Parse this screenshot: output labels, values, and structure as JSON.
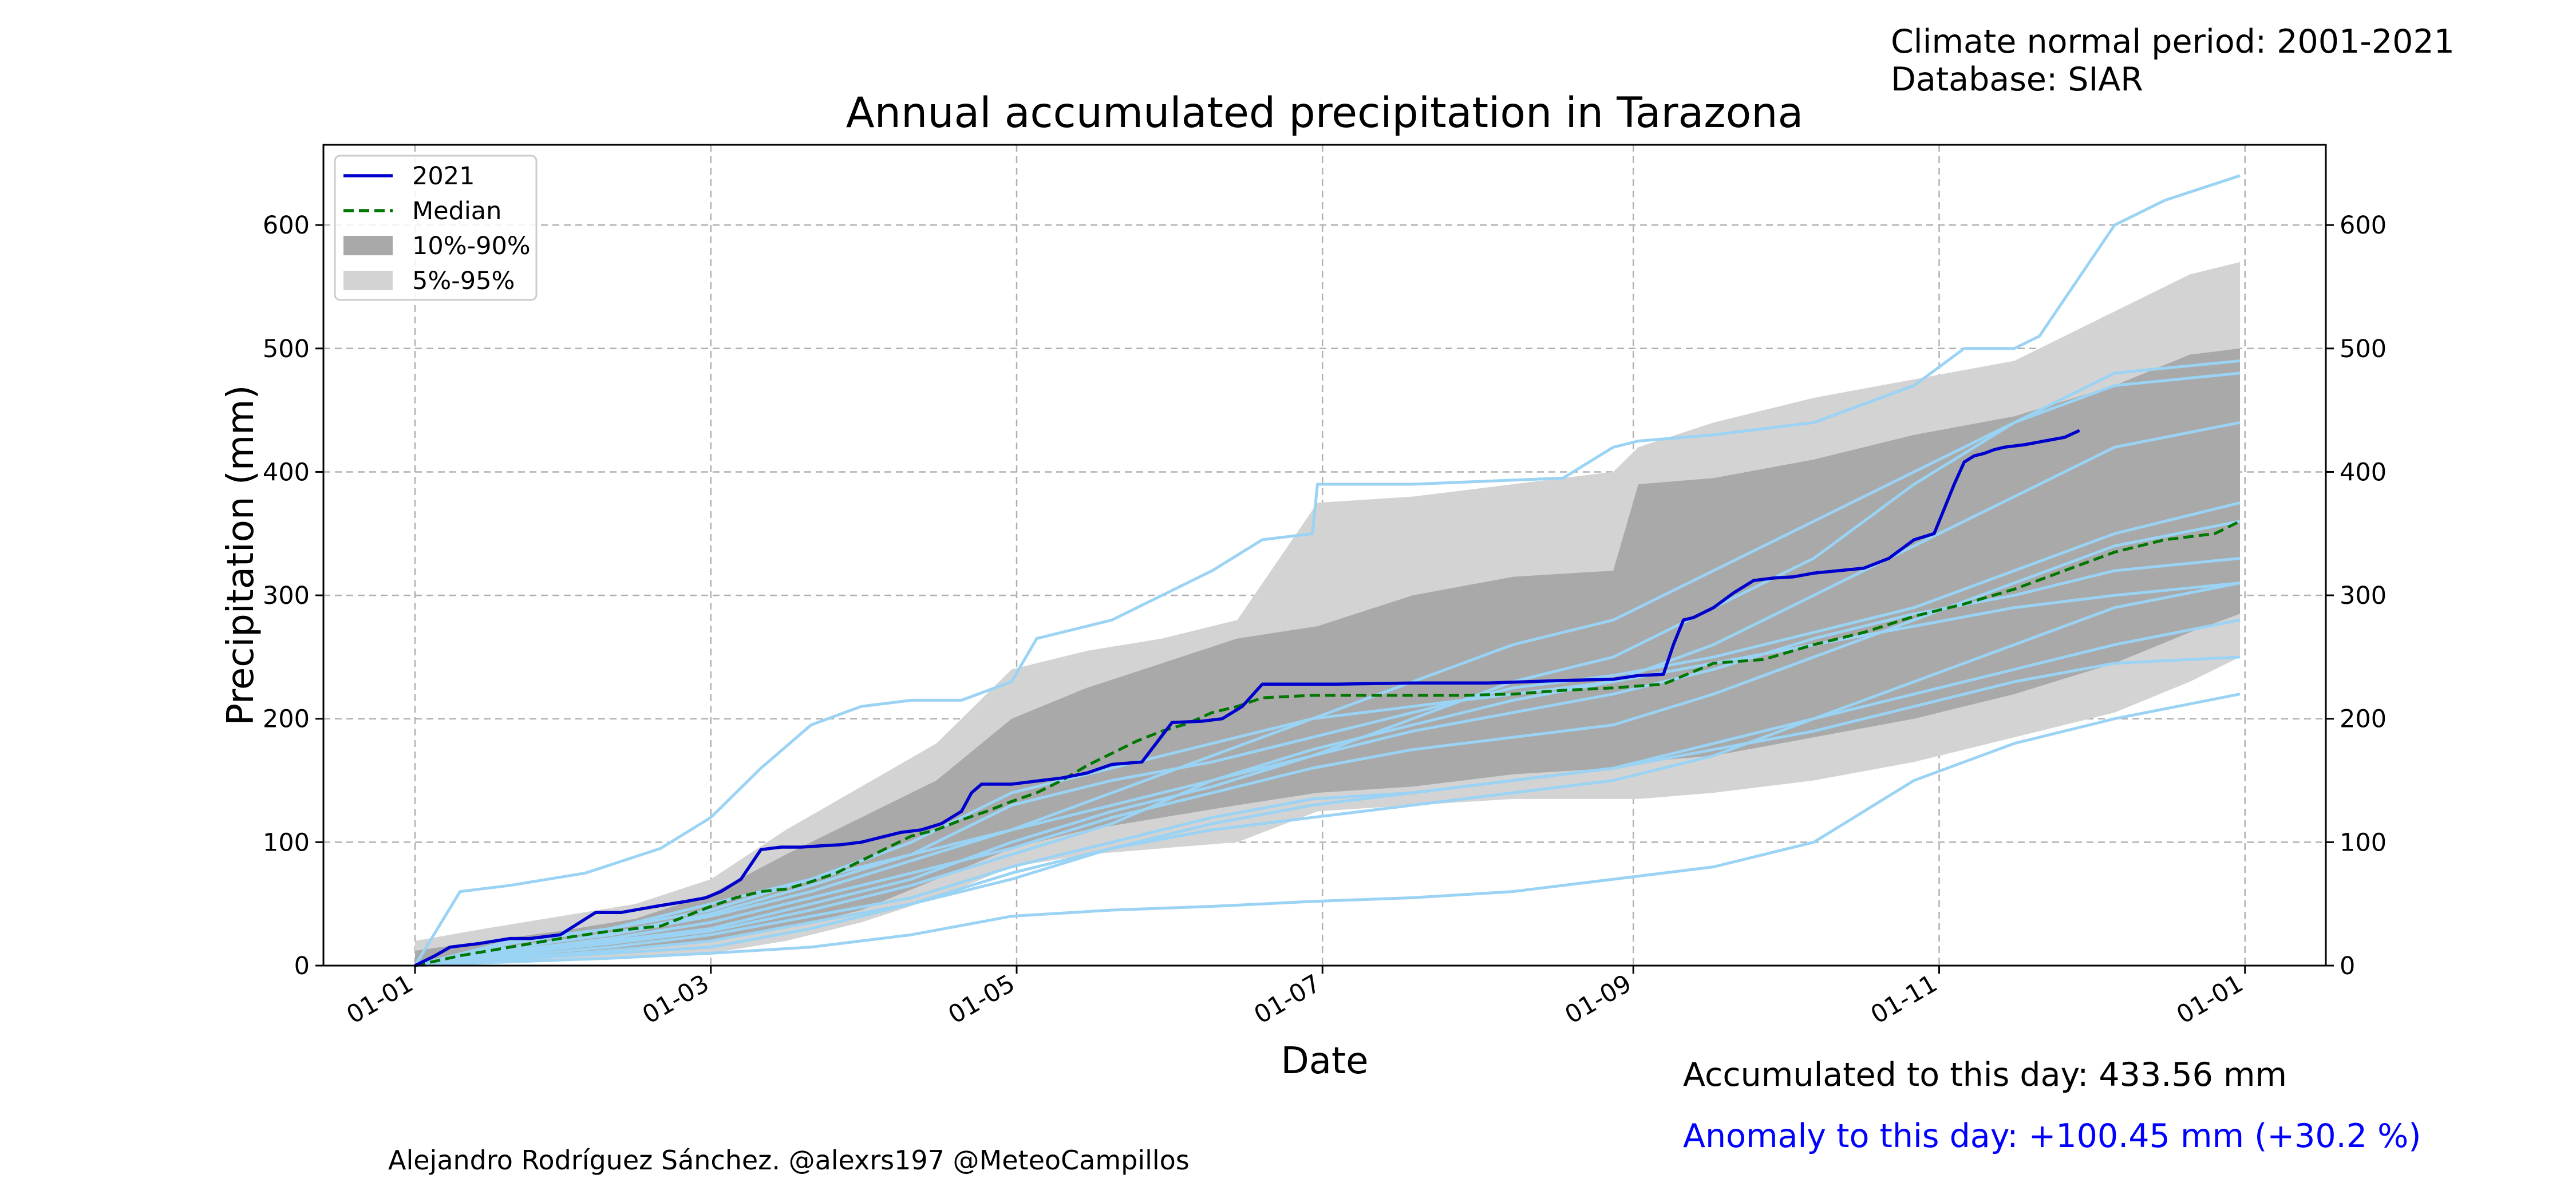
{
  "header": {
    "normal_period": "Climate normal period: 2001-2021",
    "database": "Database: SIAR"
  },
  "footer": {
    "accumulated": "Accumulated to this day: 433.56 mm",
    "anomaly": "Anomaly to this day: +100.45 mm (+30.2 %)",
    "credit": "Alejandro Rodríguez Sánchez. @alexrs197 @MeteoCampillos"
  },
  "colors": {
    "current_year": "#0000cc",
    "median": "#007700",
    "band_10_90": "#a9a9a9",
    "band_5_95": "#d3d3d3",
    "historical_years": "#9ad3f3",
    "anomaly_text": "#0000ff"
  },
  "chart_data": {
    "type": "line",
    "title": "Annual accumulated precipitation in Tarazona",
    "xlabel": "Date",
    "ylabel": "Precipitation (mm)",
    "ylim": [
      0,
      665
    ],
    "x_tick_labels": [
      "01-01",
      "01-03",
      "01-05",
      "01-07",
      "01-09",
      "01-11",
      "01-01"
    ],
    "y_ticks": [
      0,
      100,
      200,
      300,
      400,
      500,
      600
    ],
    "grid": true,
    "legend_position": "top-left",
    "legend": [
      "2021",
      "Median",
      "10%-90%",
      "5%-95%"
    ],
    "series": [
      {
        "name": "2021",
        "style": "solid",
        "color": "#0000cc",
        "x": [
          1,
          5,
          8,
          14,
          20,
          24,
          30,
          37,
          42,
          49,
          55,
          59,
          62,
          66,
          70,
          74,
          78,
          82,
          86,
          90,
          94,
          98,
          102,
          106,
          110,
          112,
          114,
          120,
          126,
          130,
          135,
          140,
          146,
          152,
          158,
          162,
          166,
          170,
          185,
          200,
          215,
          230,
          240,
          245,
          250,
          252,
          254,
          256,
          260,
          264,
          268,
          272,
          276,
          280,
          285,
          290,
          295,
          300,
          304,
          306,
          308,
          310,
          312,
          314,
          316,
          318,
          322,
          326,
          330,
          333
        ],
        "y": [
          0,
          8,
          15,
          18,
          22,
          22,
          25,
          43,
          43,
          48,
          52,
          55,
          60,
          70,
          94,
          96,
          96,
          97,
          98,
          100,
          104,
          108,
          110,
          115,
          125,
          140,
          147,
          147,
          150,
          152,
          156,
          163,
          165,
          197,
          198,
          200,
          210,
          228,
          228,
          229,
          229,
          231,
          232,
          235,
          236,
          260,
          280,
          282,
          290,
          302,
          312,
          314,
          315,
          318,
          320,
          322,
          330,
          345,
          350,
          370,
          390,
          408,
          413,
          415,
          418,
          420,
          422,
          425,
          428,
          433.56
        ]
      },
      {
        "name": "Median",
        "style": "dashed",
        "color": "#007700",
        "x": [
          1,
          10,
          20,
          30,
          40,
          50,
          55,
          60,
          65,
          70,
          75,
          80,
          85,
          90,
          95,
          100,
          105,
          110,
          115,
          120,
          125,
          130,
          135,
          140,
          145,
          150,
          155,
          160,
          165,
          170,
          180,
          190,
          200,
          210,
          220,
          230,
          240,
          250,
          260,
          270,
          280,
          290,
          300,
          310,
          320,
          330,
          340,
          350,
          360,
          365
        ],
        "y": [
          0,
          8,
          15,
          22,
          28,
          32,
          40,
          48,
          55,
          60,
          62,
          68,
          75,
          85,
          95,
          105,
          110,
          118,
          125,
          133,
          140,
          150,
          162,
          172,
          182,
          190,
          196,
          205,
          210,
          217,
          219,
          219,
          219,
          219,
          220,
          223,
          225,
          228,
          245,
          248,
          260,
          270,
          283,
          293,
          305,
          320,
          335,
          345,
          350,
          360
        ]
      }
    ],
    "bands": [
      {
        "name": "5%-95%",
        "x": [
          1,
          15,
          30,
          45,
          60,
          75,
          90,
          105,
          120,
          135,
          150,
          165,
          181,
          200,
          220,
          240,
          245,
          260,
          280,
          300,
          320,
          340,
          355,
          365
        ],
        "upper": [
          20,
          30,
          40,
          50,
          70,
          110,
          145,
          180,
          240,
          255,
          265,
          280,
          375,
          380,
          390,
          400,
          420,
          440,
          460,
          475,
          490,
          530,
          560,
          570
        ],
        "lower": [
          0,
          2,
          5,
          8,
          10,
          20,
          35,
          55,
          80,
          90,
          95,
          100,
          125,
          130,
          135,
          135,
          135,
          140,
          150,
          165,
          185,
          205,
          230,
          250
        ]
      },
      {
        "name": "10%-90%",
        "x": [
          1,
          15,
          30,
          45,
          60,
          75,
          90,
          105,
          120,
          135,
          150,
          165,
          181,
          200,
          220,
          240,
          245,
          260,
          280,
          300,
          320,
          340,
          355,
          365
        ],
        "upper": [
          12,
          20,
          28,
          38,
          58,
          90,
          120,
          150,
          200,
          225,
          245,
          265,
          275,
          300,
          315,
          320,
          390,
          395,
          410,
          430,
          445,
          470,
          495,
          500
        ],
        "lower": [
          0,
          5,
          10,
          15,
          20,
          30,
          45,
          70,
          95,
          110,
          120,
          130,
          140,
          145,
          155,
          160,
          165,
          170,
          185,
          200,
          220,
          245,
          270,
          285
        ]
      }
    ],
    "historical_years": [
      {
        "x": [
          1,
          10,
          20,
          35,
          50,
          60,
          70,
          80,
          90,
          100,
          110,
          120,
          125,
          140,
          160,
          170,
          180,
          181,
          200,
          230,
          240,
          245,
          260,
          280,
          300,
          310,
          320,
          325,
          340,
          350,
          365
        ],
        "y": [
          0,
          60,
          65,
          75,
          95,
          120,
          160,
          195,
          210,
          215,
          215,
          230,
          265,
          280,
          320,
          345,
          350,
          390,
          390,
          395,
          420,
          425,
          430,
          440,
          470,
          500,
          500,
          510,
          600,
          620,
          640
        ]
      },
      {
        "x": [
          1,
          20,
          40,
          60,
          80,
          100,
          120,
          140,
          160,
          180,
          200,
          220,
          240,
          260,
          280,
          300,
          320,
          340,
          365
        ],
        "y": [
          0,
          20,
          30,
          45,
          70,
          90,
          110,
          130,
          150,
          170,
          190,
          205,
          220,
          240,
          265,
          285,
          300,
          320,
          330
        ]
      },
      {
        "x": [
          1,
          20,
          40,
          60,
          80,
          100,
          120,
          140,
          160,
          180,
          200,
          220,
          240,
          260,
          280,
          300,
          320,
          340,
          365
        ],
        "y": [
          0,
          10,
          20,
          30,
          50,
          70,
          100,
          125,
          145,
          170,
          200,
          230,
          250,
          290,
          330,
          390,
          440,
          480,
          490
        ]
      },
      {
        "x": [
          1,
          20,
          40,
          60,
          80,
          100,
          120,
          140,
          160,
          180,
          200,
          220,
          240,
          260,
          280,
          300,
          320,
          340,
          365
        ],
        "y": [
          0,
          5,
          10,
          15,
          30,
          50,
          70,
          95,
          110,
          120,
          130,
          140,
          150,
          170,
          200,
          230,
          260,
          290,
          310
        ]
      },
      {
        "x": [
          1,
          20,
          40,
          60,
          80,
          100,
          120,
          140,
          160,
          180,
          200,
          220,
          240,
          260,
          280,
          300,
          320,
          340,
          365
        ],
        "y": [
          0,
          15,
          25,
          40,
          60,
          85,
          110,
          140,
          170,
          200,
          230,
          260,
          280,
          320,
          360,
          400,
          440,
          470,
          480
        ]
      },
      {
        "x": [
          1,
          20,
          40,
          60,
          80,
          100,
          120,
          140,
          160,
          180,
          200,
          220,
          240,
          260,
          280,
          300,
          320,
          340,
          365
        ],
        "y": [
          0,
          8,
          15,
          25,
          40,
          55,
          80,
          100,
          120,
          135,
          140,
          150,
          160,
          180,
          200,
          220,
          240,
          260,
          280
        ]
      },
      {
        "x": [
          1,
          20,
          40,
          60,
          80,
          100,
          120,
          140,
          160,
          180,
          200,
          220,
          240,
          260,
          280,
          300,
          320,
          340,
          365
        ],
        "y": [
          0,
          12,
          22,
          35,
          55,
          75,
          95,
          120,
          140,
          160,
          175,
          185,
          195,
          220,
          250,
          280,
          310,
          340,
          360
        ]
      },
      {
        "x": [
          1,
          20,
          40,
          60,
          80,
          100,
          120,
          140,
          160,
          180,
          200,
          220,
          240,
          260,
          280,
          300,
          320,
          340,
          365
        ],
        "y": [
          0,
          3,
          6,
          10,
          15,
          25,
          40,
          45,
          48,
          52,
          55,
          60,
          70,
          80,
          100,
          150,
          180,
          200,
          220
        ]
      },
      {
        "x": [
          1,
          20,
          40,
          60,
          80,
          100,
          120,
          140,
          160,
          180,
          200,
          220,
          240,
          260,
          280,
          300,
          320,
          340,
          365
        ],
        "y": [
          0,
          18,
          30,
          50,
          70,
          100,
          140,
          160,
          180,
          200,
          210,
          220,
          230,
          260,
          300,
          340,
          380,
          420,
          440
        ]
      },
      {
        "x": [
          1,
          20,
          40,
          60,
          80,
          100,
          120,
          140,
          160,
          180,
          200,
          220,
          240,
          260,
          280,
          300,
          320,
          340,
          365
        ],
        "y": [
          0,
          6,
          12,
          20,
          35,
          50,
          75,
          95,
          115,
          130,
          140,
          150,
          160,
          175,
          190,
          210,
          230,
          245,
          250
        ]
      },
      {
        "x": [
          1,
          20,
          40,
          60,
          80,
          100,
          120,
          140,
          160,
          180,
          200,
          220,
          240,
          260,
          280,
          300,
          320,
          340,
          365
        ],
        "y": [
          0,
          14,
          26,
          42,
          65,
          90,
          130,
          150,
          165,
          185,
          205,
          225,
          235,
          250,
          270,
          290,
          320,
          350,
          375
        ]
      },
      {
        "x": [
          1,
          20,
          40,
          60,
          80,
          100,
          120,
          140,
          160,
          180,
          200,
          220,
          240,
          260,
          280,
          300,
          320,
          340,
          365
        ],
        "y": [
          0,
          10,
          18,
          28,
          45,
          65,
          90,
          115,
          150,
          175,
          195,
          215,
          230,
          245,
          260,
          275,
          290,
          300,
          310
        ]
      }
    ]
  }
}
